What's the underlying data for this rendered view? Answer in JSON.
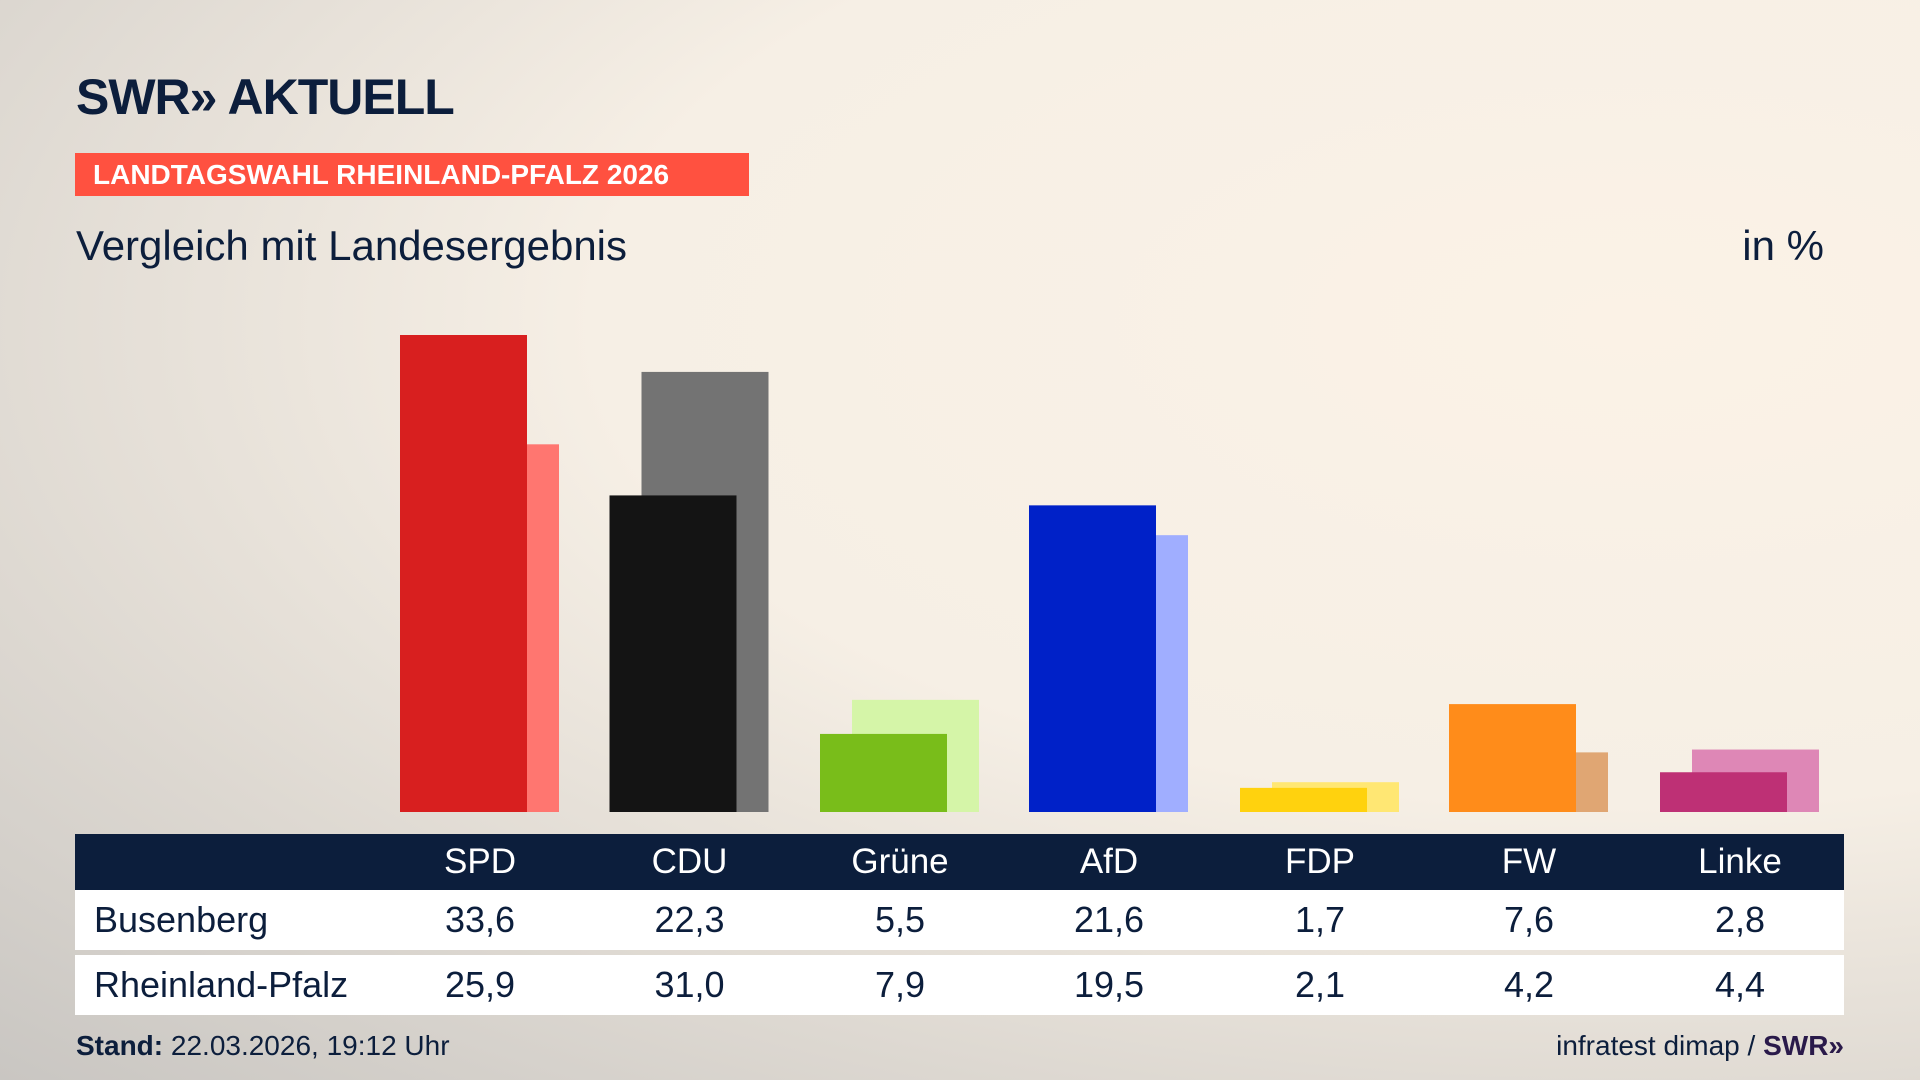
{
  "header": {
    "logo": "SWR» AKTUELL",
    "badge": "LANDTAGSWAHL RHEINLAND-PFALZ 2026",
    "subtitle": "Vergleich mit Landesergebnis",
    "unit": "in %"
  },
  "chart_data": {
    "type": "bar",
    "categories": [
      "SPD",
      "CDU",
      "Grüne",
      "AfD",
      "FDP",
      "FW",
      "Linke"
    ],
    "series": [
      {
        "name": "Busenberg",
        "values": [
          33.6,
          22.3,
          5.5,
          21.6,
          1.7,
          7.6,
          2.8
        ],
        "colors": [
          "#d81f1f",
          "#141414",
          "#79bd1a",
          "#0021c8",
          "#ffd20e",
          "#ff8c1a",
          "#be3075"
        ]
      },
      {
        "name": "Rheinland-Pfalz",
        "values": [
          25.9,
          31.0,
          7.9,
          19.5,
          2.1,
          4.2,
          4.4
        ],
        "colors": [
          "#ff7670",
          "#737373",
          "#d5f5a8",
          "#a0aeff",
          "#ffe773",
          "#e0a673",
          "#de87b6"
        ]
      }
    ],
    "ylim": [
      0,
      33.6
    ],
    "grid": false
  },
  "table": {
    "headers": [
      "SPD",
      "CDU",
      "Grüne",
      "AfD",
      "FDP",
      "FW",
      "Linke"
    ],
    "rows": [
      {
        "label": "Busenberg",
        "values": [
          "33,6",
          "22,3",
          "5,5",
          "21,6",
          "1,7",
          "7,6",
          "2,8"
        ]
      },
      {
        "label": "Rheinland-Pfalz",
        "values": [
          "25,9",
          "31,0",
          "7,9",
          "19,5",
          "2,1",
          "4,2",
          "4,4"
        ]
      }
    ]
  },
  "footer": {
    "stand_label": "Stand:",
    "stand_value": "22.03.2026, 19:12 Uhr",
    "source": "infratest dimap /",
    "source_logo": "SWR»"
  }
}
